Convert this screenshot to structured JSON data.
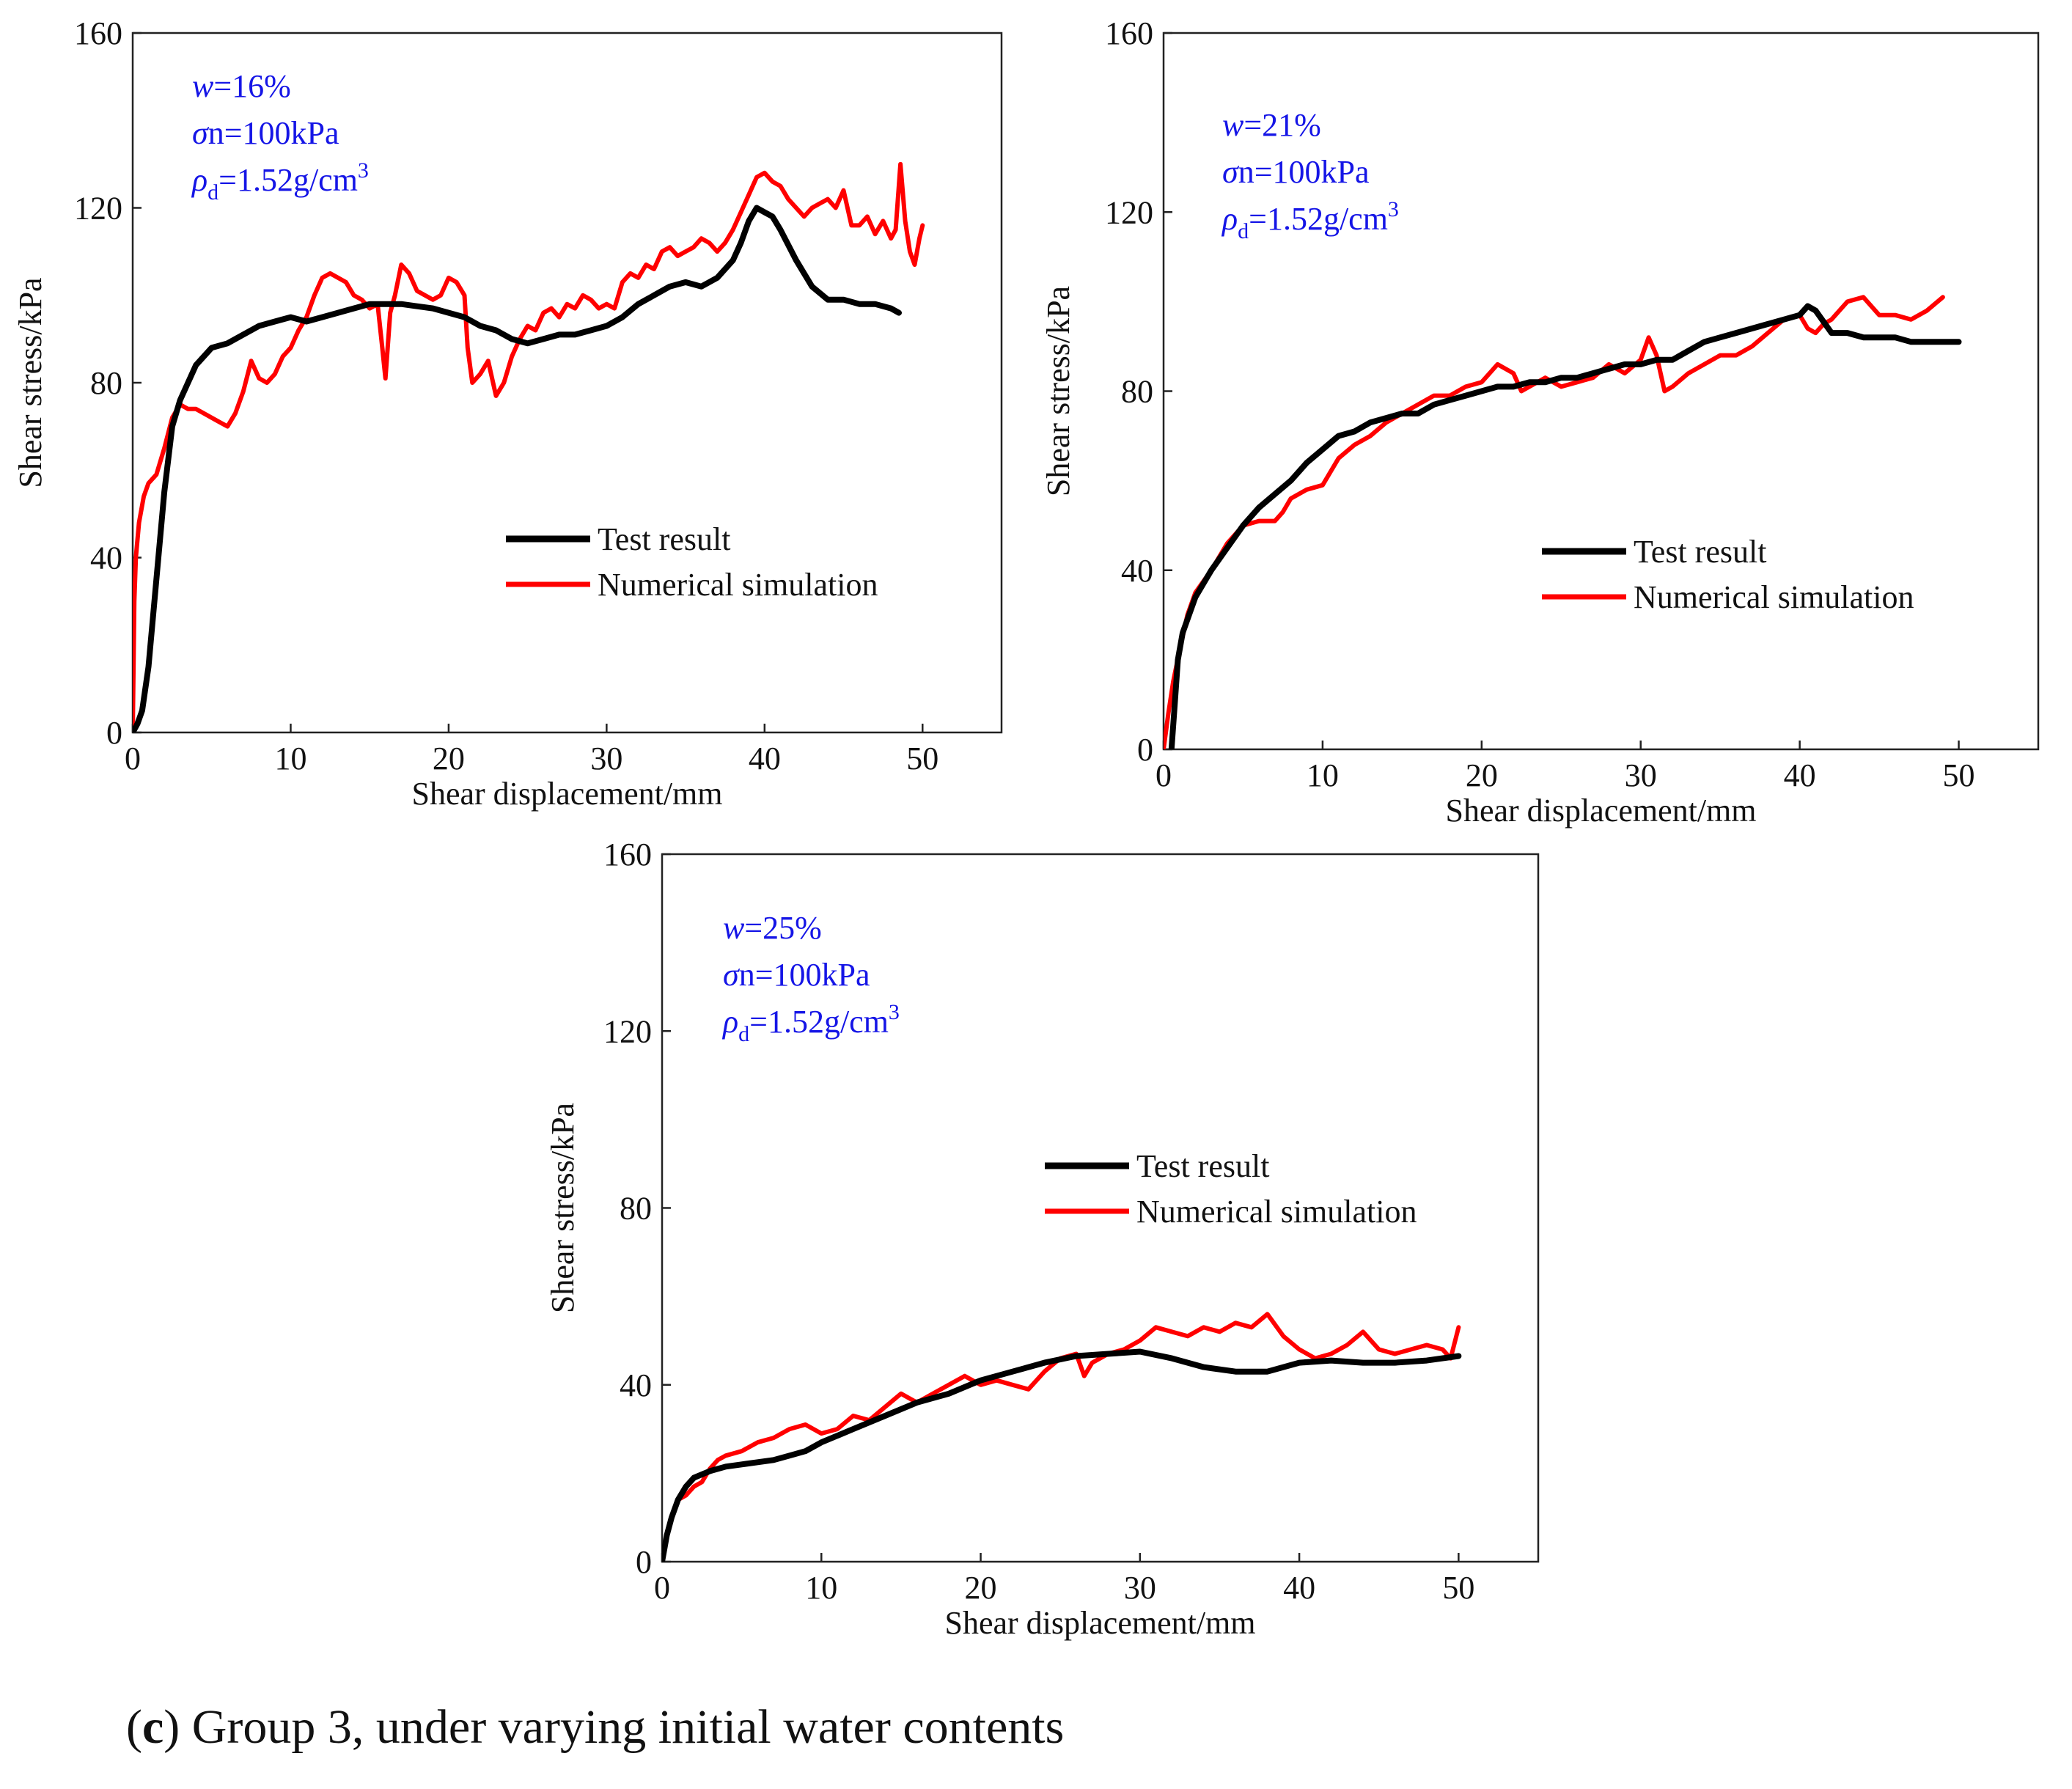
{
  "caption": {
    "open_paren": "(",
    "letter": "c",
    "rest": ") Group 3, under varying initial water contents"
  },
  "colors": {
    "test": "#000000",
    "simulation": "#ff0000",
    "annotation": "#1515e6"
  },
  "chart_data": [
    {
      "type": "line",
      "id": "chart-w16",
      "title": "",
      "xlabel": "Shear displacement/mm",
      "ylabel": "Shear stress/kPa",
      "xlim": [
        0,
        55
      ],
      "ylim": [
        0,
        160
      ],
      "xticks": [
        0,
        10,
        20,
        30,
        40,
        50
      ],
      "yticks": [
        0,
        40,
        80,
        120,
        160
      ],
      "legend_position": "center-right",
      "annotations": {
        "w": "w",
        "w_value": "=16%",
        "sigma": "σ",
        "sigma_value": "n=100kPa",
        "rho": "ρ",
        "rho_sub": "d",
        "rho_value": "=1.52g/cm",
        "rho_sup": "3"
      },
      "series": [
        {
          "name": "Test result",
          "color": "#000000",
          "x": [
            0,
            0.3,
            0.6,
            1.0,
            1.5,
            2.0,
            2.5,
            3.0,
            3.5,
            4.0,
            5.0,
            6.0,
            7.0,
            8.0,
            9.0,
            10,
            11,
            12,
            13,
            14,
            15,
            16,
            17,
            18,
            19,
            20,
            21,
            22,
            23,
            24,
            25,
            26,
            27,
            28,
            29,
            30,
            31,
            32,
            33,
            34,
            35,
            36,
            37,
            38,
            38.5,
            39,
            39.5,
            40,
            40.5,
            41,
            42,
            43,
            44,
            45,
            46,
            47,
            48,
            48.5
          ],
          "y": [
            0,
            2,
            5,
            15,
            35,
            55,
            70,
            76,
            80,
            84,
            88,
            89,
            91,
            93,
            94,
            95,
            94,
            95,
            96,
            97,
            98,
            98,
            98,
            97.5,
            97,
            96,
            95,
            93,
            92,
            90,
            89,
            90,
            91,
            91,
            92,
            93,
            95,
            98,
            100,
            102,
            103,
            102,
            104,
            108,
            112,
            117,
            120,
            119,
            118,
            115,
            108,
            102,
            99,
            99,
            98,
            98,
            97,
            96
          ]
        },
        {
          "name": "Numerical simulation",
          "color": "#ff0000",
          "x": [
            0,
            0.1,
            0.2,
            0.4,
            0.7,
            1.0,
            1.5,
            2.0,
            2.5,
            3.0,
            3.5,
            4.0,
            4.5,
            5.0,
            5.5,
            6.0,
            6.5,
            7.0,
            7.5,
            8.0,
            8.5,
            9.0,
            9.5,
            10,
            10.5,
            11,
            11.5,
            12,
            12.5,
            13,
            13.5,
            14,
            14.5,
            15,
            15.5,
            15.8,
            16.0,
            16.3,
            16.6,
            17,
            17.5,
            18,
            18.5,
            19,
            19.5,
            20,
            20.5,
            21,
            21.2,
            21.5,
            22,
            22.5,
            23,
            23.5,
            24,
            24.5,
            25,
            25.5,
            26,
            26.5,
            27,
            27.5,
            28,
            28.5,
            29,
            29.5,
            30,
            30.5,
            31,
            31.5,
            32,
            32.5,
            33,
            33.5,
            34,
            34.5,
            35,
            35.5,
            36,
            36.5,
            37,
            37.5,
            38,
            38.5,
            39,
            39.5,
            40,
            40.5,
            41,
            41.5,
            42,
            42.5,
            43,
            43.5,
            44,
            44.5,
            45,
            45.5,
            46,
            46.5,
            47,
            47.5,
            48,
            48.3,
            48.6,
            48.9,
            49.2,
            49.5,
            49.8,
            50
          ],
          "y": [
            0,
            30,
            40,
            48,
            54,
            57,
            59,
            65,
            72,
            75,
            74,
            74,
            73,
            72,
            71,
            70,
            73,
            78,
            85,
            81,
            80,
            82,
            86,
            88,
            92,
            95,
            100,
            104,
            105,
            104,
            103,
            100,
            99,
            97,
            98,
            88,
            81,
            96,
            100,
            107,
            105,
            101,
            100,
            99,
            100,
            104,
            103,
            100,
            88,
            80,
            82,
            85,
            77,
            80,
            86,
            90,
            93,
            92,
            96,
            97,
            95,
            98,
            97,
            100,
            99,
            97,
            98,
            97,
            103,
            105,
            104,
            107,
            106,
            110,
            111,
            109,
            110,
            111,
            113,
            112,
            110,
            112,
            115,
            119,
            123,
            127,
            128,
            126,
            125,
            122,
            120,
            118,
            120,
            121,
            122,
            120,
            124,
            116,
            116,
            118,
            114,
            117,
            113,
            115,
            130,
            117,
            110,
            107,
            113,
            116
          ]
        }
      ]
    },
    {
      "type": "line",
      "id": "chart-w21",
      "title": "",
      "xlabel": "Shear displacement/mm",
      "ylabel": "Shear stress/kPa",
      "xlim": [
        0,
        55
      ],
      "ylim": [
        0,
        160
      ],
      "xticks": [
        0,
        10,
        20,
        30,
        40,
        50
      ],
      "yticks": [
        0,
        40,
        80,
        120,
        160
      ],
      "legend_position": "center-right",
      "annotations": {
        "w": "w",
        "w_value": "=21%",
        "sigma": "σ",
        "sigma_value": "n=100kPa",
        "rho": "ρ",
        "rho_sub": "d",
        "rho_value": "=1.52g/cm",
        "rho_sup": "3"
      },
      "series": [
        {
          "name": "Test result",
          "color": "#000000",
          "x": [
            0.5,
            0.7,
            0.9,
            1.2,
            1.6,
            2.0,
            3.0,
            4.0,
            5.0,
            6.0,
            7.0,
            8.0,
            9.0,
            10,
            11,
            12,
            13,
            14,
            15,
            16,
            17,
            18,
            19,
            20,
            21,
            22,
            23,
            24,
            25,
            26,
            27,
            28,
            29,
            30,
            31,
            32,
            33,
            34,
            35,
            36,
            37,
            38,
            39,
            40,
            40.5,
            41,
            42,
            43,
            44,
            45,
            46,
            47,
            48,
            49,
            50
          ],
          "y": [
            0,
            10,
            20,
            26,
            30,
            34,
            40,
            45,
            50,
            54,
            57,
            60,
            64,
            67,
            70,
            71,
            73,
            74,
            75,
            75,
            77,
            78,
            79,
            80,
            81,
            81,
            82,
            82,
            83,
            83,
            84,
            85,
            86,
            86,
            87,
            87,
            89,
            91,
            92,
            93,
            94,
            95,
            96,
            97,
            99,
            98,
            93,
            93,
            92,
            92,
            92,
            91,
            91,
            91,
            91
          ]
        },
        {
          "name": "Numerical simulation",
          "color": "#ff0000",
          "x": [
            0,
            0.3,
            0.6,
            1.0,
            1.5,
            2.0,
            3.0,
            4.0,
            5.0,
            6.0,
            7.0,
            7.5,
            8.0,
            9.0,
            10,
            11,
            12,
            13,
            14,
            15,
            16,
            17,
            18,
            19,
            20,
            21,
            22,
            22.5,
            23,
            24,
            25,
            26,
            27,
            28,
            29,
            30,
            30.5,
            31,
            31.5,
            32,
            33,
            34,
            35,
            36,
            37,
            38,
            39,
            40,
            40.5,
            41,
            41.5,
            42,
            43,
            44,
            45,
            46,
            47,
            48,
            49
          ],
          "y": [
            0,
            8,
            15,
            22,
            30,
            35,
            40,
            46,
            50,
            51,
            51,
            53,
            56,
            58,
            59,
            65,
            68,
            70,
            73,
            75,
            77,
            79,
            79,
            81,
            82,
            86,
            84,
            80,
            81,
            83,
            81,
            82,
            83,
            86,
            84,
            87,
            92,
            88,
            80,
            81,
            84,
            86,
            88,
            88,
            90,
            93,
            96,
            97,
            94,
            93,
            95,
            96,
            100,
            101,
            97,
            97,
            96,
            98,
            101
          ]
        }
      ]
    },
    {
      "type": "line",
      "id": "chart-w25",
      "title": "",
      "xlabel": "Shear displacement/mm",
      "ylabel": "Shear stress/kPa",
      "xlim": [
        0,
        55
      ],
      "ylim": [
        0,
        160
      ],
      "xticks": [
        0,
        10,
        20,
        30,
        40,
        50
      ],
      "yticks": [
        0,
        40,
        80,
        120,
        160
      ],
      "legend_position": "center-right",
      "annotations": {
        "w": "w",
        "w_value": "=25%",
        "sigma": "σ",
        "sigma_value": "n=100kPa",
        "rho": "ρ",
        "rho_sub": "d",
        "rho_value": "=1.52g/cm",
        "rho_sup": "3"
      },
      "series": [
        {
          "name": "Test result",
          "color": "#000000",
          "x": [
            0,
            0.3,
            0.6,
            1.0,
            1.5,
            2.0,
            3.0,
            4.0,
            5.0,
            6.0,
            7.0,
            8.0,
            9.0,
            10,
            12,
            14,
            16,
            18,
            20,
            22,
            24,
            26,
            28,
            30,
            32,
            34,
            36,
            38,
            40,
            42,
            44,
            46,
            48,
            50
          ],
          "y": [
            0,
            6,
            10,
            14,
            17,
            19,
            20.5,
            21.5,
            22,
            22.5,
            23,
            24,
            25,
            27,
            30,
            33,
            36,
            38,
            41,
            43,
            45,
            46.5,
            47,
            47.5,
            46,
            44,
            43,
            43,
            45,
            45.5,
            45,
            45,
            45.5,
            46.5
          ]
        },
        {
          "name": "Numerical simulation",
          "color": "#ff0000",
          "x": [
            0,
            0.3,
            0.6,
            1.0,
            1.5,
            2.0,
            2.5,
            3.0,
            3.5,
            4.0,
            5.0,
            6.0,
            7.0,
            8.0,
            9.0,
            10,
            11,
            12,
            13,
            14,
            15,
            16,
            17,
            18,
            19,
            20,
            21,
            22,
            23,
            24,
            25,
            26,
            26.5,
            27,
            28,
            29,
            30,
            31,
            32,
            33,
            34,
            35,
            36,
            37,
            38,
            39,
            40,
            41,
            42,
            43,
            44,
            45,
            46,
            47,
            48,
            49,
            49.5,
            50
          ],
          "y": [
            0,
            6,
            10,
            14,
            15,
            17,
            18,
            21,
            23,
            24,
            25,
            27,
            28,
            30,
            31,
            29,
            30,
            33,
            32,
            35,
            38,
            36,
            38,
            40,
            42,
            40,
            41,
            40,
            39,
            43,
            46,
            47,
            42,
            45,
            47,
            48,
            50,
            53,
            52,
            51,
            53,
            52,
            54,
            53,
            56,
            51,
            48,
            46,
            47,
            49,
            52,
            48,
            47,
            48,
            49,
            48,
            46,
            53
          ]
        }
      ]
    }
  ]
}
